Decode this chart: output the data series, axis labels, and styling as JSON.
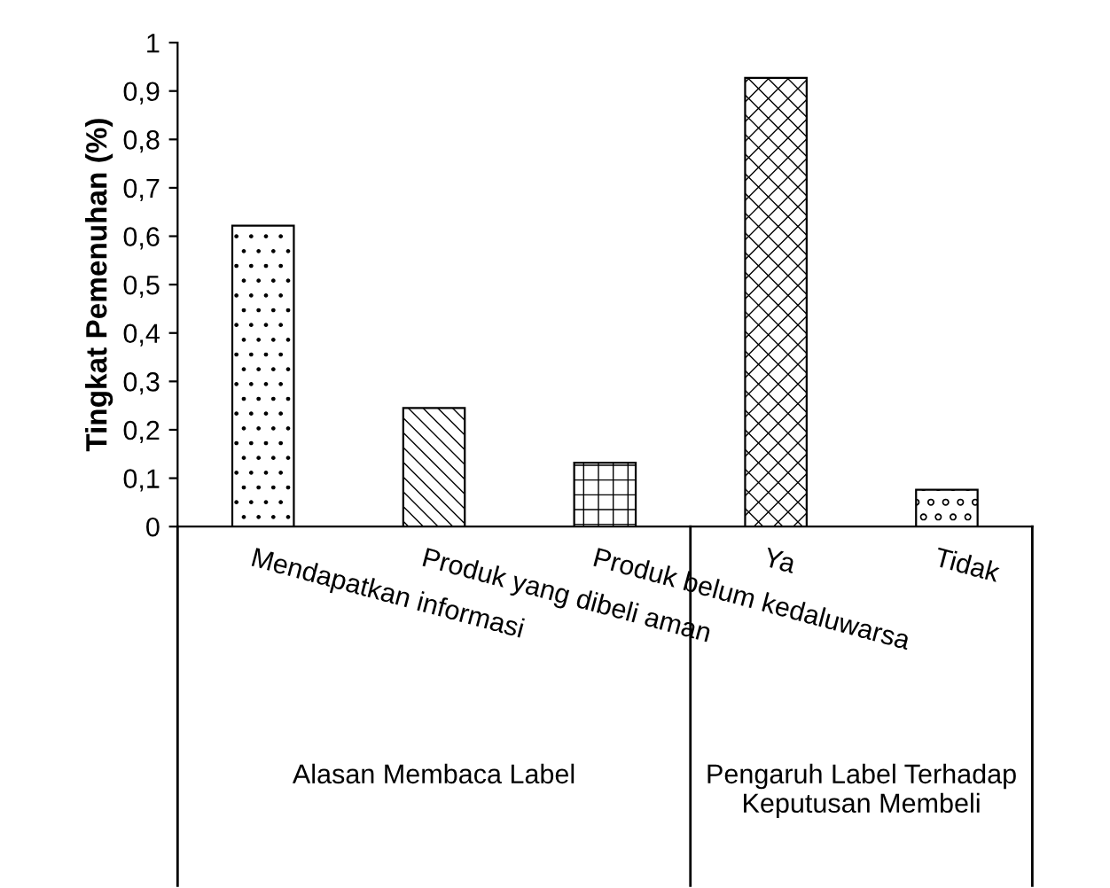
{
  "chart_data": {
    "type": "bar",
    "categories": [
      "Mendapatkan informasi",
      "Produk yang dibeli aman",
      "Produk belum kedaluwarsa",
      "Ya",
      "Tidak"
    ],
    "values": [
      0.622,
      0.245,
      0.132,
      0.927,
      0.076
    ],
    "colors": [
      "#000000",
      "#000000",
      "#000000",
      "#000000",
      "#000000"
    ],
    "ylabel": "Tingkat Pemenuhan (%)",
    "ylim": [
      0,
      1
    ],
    "yticks": [
      0,
      {
        "value": 0.1,
        "label": "0,1"
      },
      {
        "value": 0.2,
        "label": "0,2"
      },
      {
        "value": 0.3,
        "label": "0,3"
      },
      {
        "value": 0.4,
        "label": "0,4"
      },
      {
        "value": 0.5,
        "label": "0,5"
      },
      {
        "value": 0.6,
        "label": "0,6"
      },
      {
        "value": 0.7,
        "label": "0,7"
      },
      {
        "value": 0.8,
        "label": "0,8"
      },
      {
        "value": 0.9,
        "label": "0,9"
      },
      1
    ],
    "annotations": [
      "Alasan Membaca Label",
      "Pengaruh Label Terhadap Keputusan Membeli"
    ],
    "grid": false,
    "legend": false
  }
}
